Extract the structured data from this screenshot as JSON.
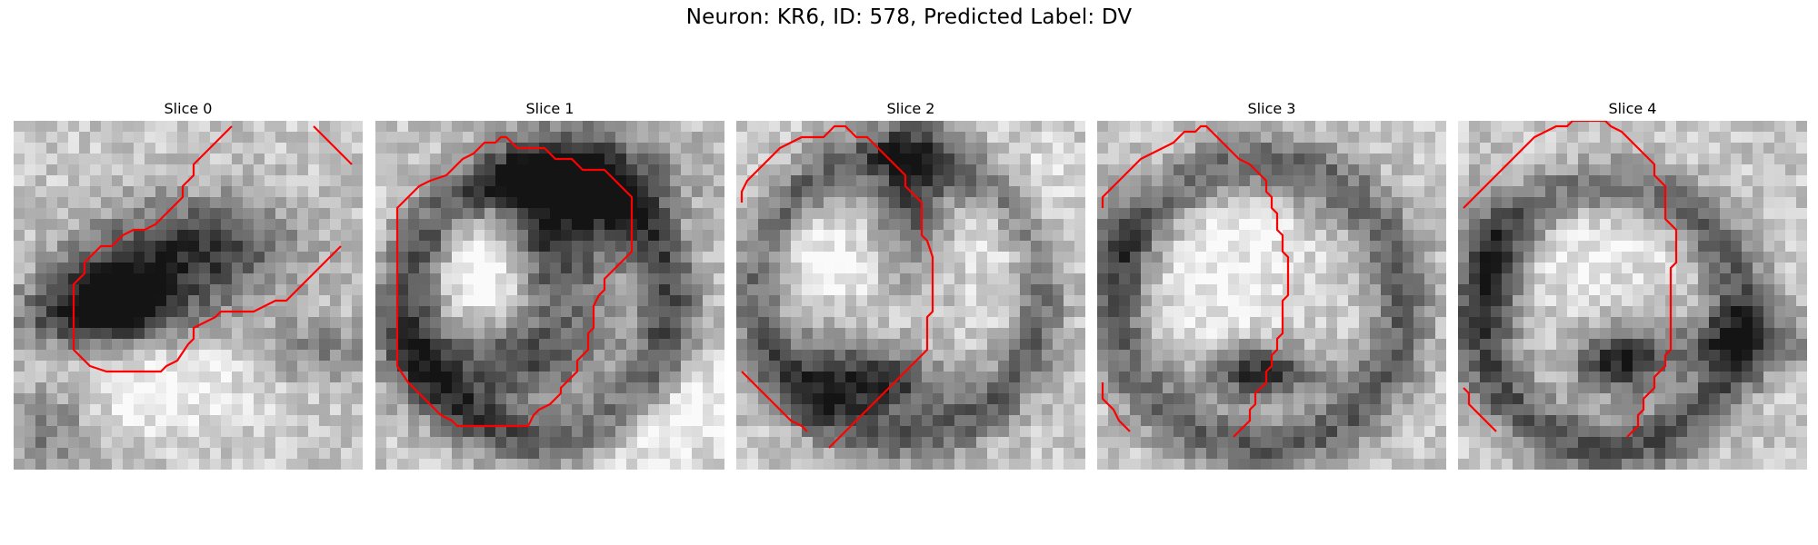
{
  "figure": {
    "title": "Neuron: KR6, ID: 578, Predicted Label: DV"
  },
  "panels": [
    {
      "title": "Slice 0"
    },
    {
      "title": "Slice 1"
    },
    {
      "title": "Slice 2"
    },
    {
      "title": "Slice 3"
    },
    {
      "title": "Slice 4"
    }
  ],
  "colors": {
    "contour": "#ff0000",
    "colormap": "gray"
  }
}
